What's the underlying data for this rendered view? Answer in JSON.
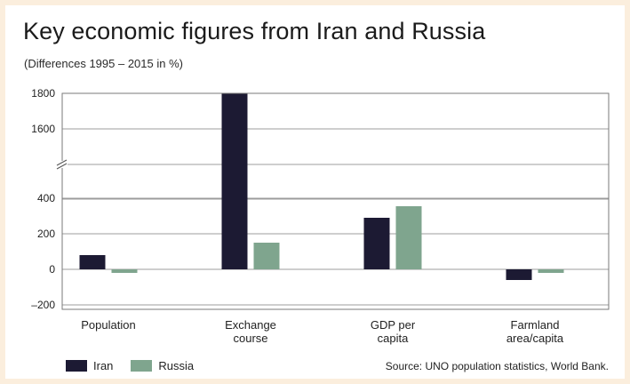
{
  "title": "Key economic figures from Iran and Russia",
  "subtitle": "(Differences 1995 – 2015 in %)",
  "source": "Source: UNO population statistics, World Bank.",
  "colors": {
    "Iran": "#1c1a33",
    "Russia": "#7fa58e"
  },
  "chart_data": {
    "type": "bar",
    "categories": [
      [
        "Population"
      ],
      [
        "Exchange",
        "course"
      ],
      [
        "GDP per",
        "capita"
      ],
      [
        "Farmland",
        "area/capita"
      ]
    ],
    "series": [
      {
        "name": "Iran",
        "values": [
          80,
          1800,
          290,
          -60
        ]
      },
      {
        "name": "Russia",
        "values": [
          -20,
          150,
          355,
          -20
        ]
      }
    ],
    "yticks": [
      "1800",
      "1600",
      "400",
      "200",
      "0",
      "–200"
    ],
    "yaxis_break": "between 400 and 1600",
    "ylim": [
      -200,
      1800
    ],
    "grid": true,
    "legend": "bottom-left"
  }
}
